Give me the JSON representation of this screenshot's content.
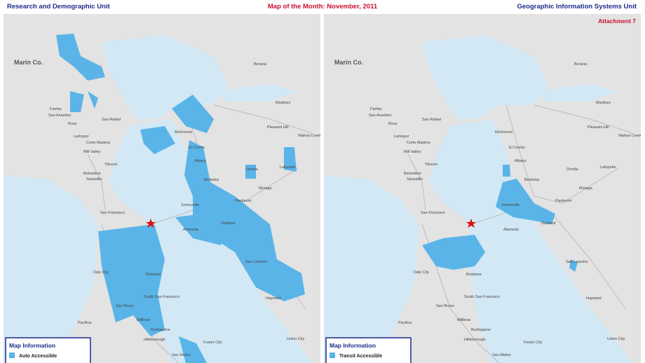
{
  "header": {
    "left": "Research and Demographic Unit",
    "center": "Map of the Month: November, 2011",
    "right": "Geographic Information Systems Unit"
  },
  "attachment": "Attachment 7",
  "panels": [
    {
      "legend": {
        "title": "Map Information",
        "item": "Auto Accessible"
      },
      "places": [
        "Marin Co.",
        "Benicia",
        "Martinez",
        "Fairfax",
        "San Anselmo",
        "Ross",
        "San Rafael",
        "Larkspur",
        "Corte Madera",
        "Mill Valley",
        "Tiburon",
        "Belvedere",
        "Sausalito",
        "Richmond",
        "Pleasant Hill",
        "Walnut Creek",
        "El Cerrito",
        "Albany",
        "Berkeley",
        "Orinda",
        "Lafayette",
        "Moraga",
        "Emeryville",
        "Piedmont",
        "San Francisco",
        "Oakland",
        "Alameda",
        "Daly City",
        "Brisbane",
        "South San Francisco",
        "San Bruno",
        "San Leandro",
        "Hayward",
        "Pacifica",
        "Millbrae",
        "Burlingame",
        "Hillsborough",
        "Foster City",
        "San Mateo",
        "Union City"
      ]
    },
    {
      "legend": {
        "title": "Map Information",
        "item": "Transit Accessible"
      },
      "places": [
        "Marin Co.",
        "Benicia",
        "Martinez",
        "Fairfax",
        "San Anselmo",
        "Ross",
        "San Rafael",
        "Larkspur",
        "Corte Madera",
        "Mill Valley",
        "Tiburon",
        "Belvedere",
        "Sausalito",
        "Richmond",
        "Pleasant Hill",
        "Walnut Creek",
        "El Cerrito",
        "Albany",
        "Berkeley",
        "Orinda",
        "Lafayette",
        "Moraga",
        "Emeryville",
        "Piedmont",
        "San Francisco",
        "Oakland",
        "Alameda",
        "Daly City",
        "Brisbane",
        "South San Francisco",
        "San Bruno",
        "San Leandro",
        "Hayward",
        "Pacifica",
        "Millbrae",
        "Burlingame",
        "Hillsborough",
        "Foster City",
        "San Mateo",
        "Union City"
      ]
    }
  ]
}
